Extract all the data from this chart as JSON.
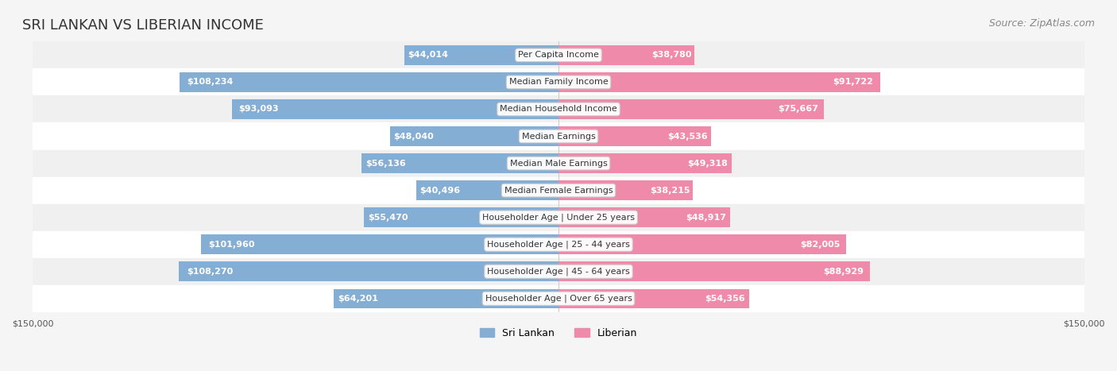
{
  "title": "SRI LANKAN VS LIBERIAN INCOME",
  "source": "Source: ZipAtlas.com",
  "categories": [
    "Per Capita Income",
    "Median Family Income",
    "Median Household Income",
    "Median Earnings",
    "Median Male Earnings",
    "Median Female Earnings",
    "Householder Age | Under 25 years",
    "Householder Age | 25 - 44 years",
    "Householder Age | 45 - 64 years",
    "Householder Age | Over 65 years"
  ],
  "sri_lankan": [
    44014,
    108234,
    93093,
    48040,
    56136,
    40496,
    55470,
    101960,
    108270,
    64201
  ],
  "liberian": [
    38780,
    91722,
    75667,
    43536,
    49318,
    38215,
    48917,
    82005,
    88929,
    54356
  ],
  "max_val": 150000,
  "sri_lankan_color": "#85aed4",
  "liberian_color": "#f08aab",
  "sri_lankan_label_color_high": "#ffffff",
  "sri_lankan_label_color_low": "#555555",
  "liberian_label_color_high": "#ffffff",
  "liberian_label_color_low": "#555555",
  "background_color": "#f5f5f5",
  "row_bg_color": "#f0f0f0",
  "row_alt_bg_color": "#ffffff",
  "title_fontsize": 13,
  "source_fontsize": 9,
  "label_fontsize": 8,
  "category_fontsize": 8,
  "legend_fontsize": 9,
  "axis_label_fontsize": 8,
  "threshold_white_label": 20000
}
